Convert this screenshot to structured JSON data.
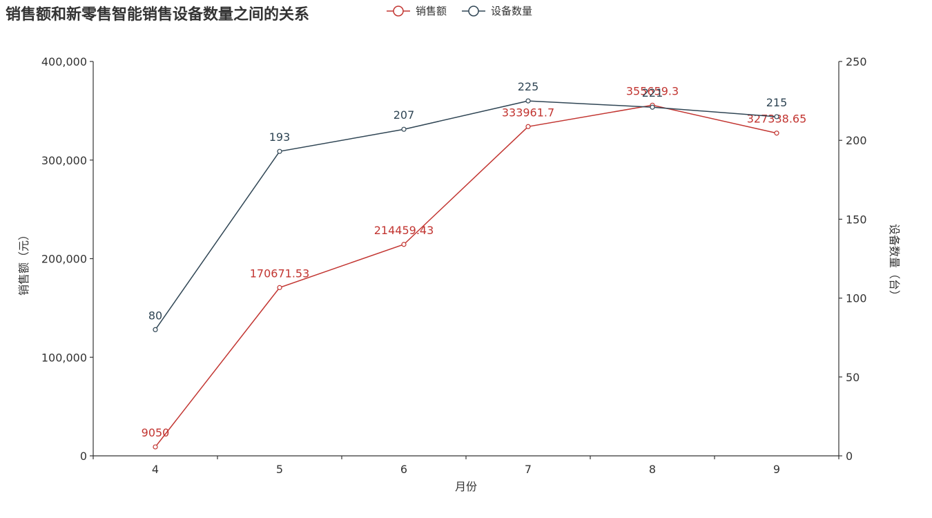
{
  "chart_data": {
    "type": "line",
    "title": "销售额和新零售智能销售设备数量之间的关系",
    "xlabel": "月份",
    "categories": [
      "4",
      "5",
      "6",
      "7",
      "8",
      "9"
    ],
    "y_left": {
      "label": "销售额（元）",
      "range": [
        0,
        400000
      ],
      "ticks": [
        0,
        100000,
        200000,
        300000,
        400000
      ],
      "tick_labels": [
        "0",
        "100,000",
        "200,000",
        "300,000",
        "400,000"
      ]
    },
    "y_right": {
      "label": "设备数量（台）",
      "range": [
        0,
        250
      ],
      "ticks": [
        0,
        50,
        100,
        150,
        200,
        250
      ],
      "tick_labels": [
        "0",
        "50",
        "100",
        "150",
        "200",
        "250"
      ]
    },
    "series": [
      {
        "name": "销售额",
        "axis": "left",
        "color": "#c23531",
        "values": [
          9050,
          170671.53,
          214459.43,
          333961.7,
          355659.3,
          327338.65
        ],
        "labels": [
          "9050",
          "170671.53",
          "214459.43",
          "333961.7",
          "355659.3",
          "327338.65"
        ]
      },
      {
        "name": "设备数量",
        "axis": "right",
        "color": "#2f4554",
        "values": [
          80,
          193,
          207,
          225,
          221,
          215
        ],
        "labels": [
          "80",
          "193",
          "207",
          "225",
          "221",
          "215"
        ]
      }
    ],
    "legend": "top-left",
    "grid": false
  }
}
